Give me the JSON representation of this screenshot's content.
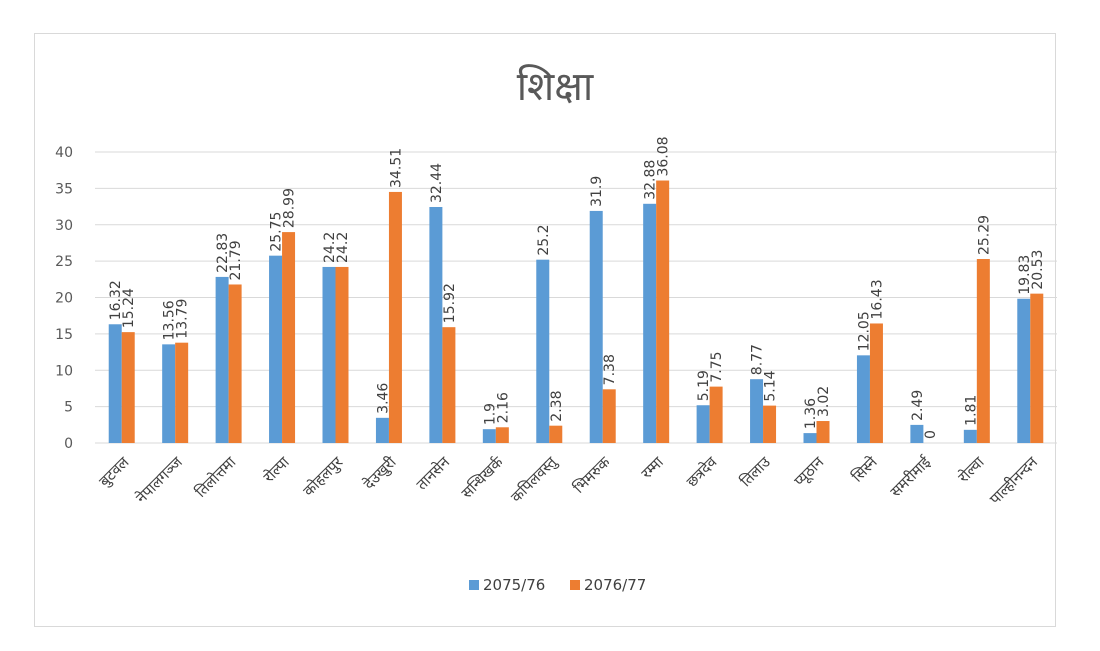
{
  "chart_data": {
    "type": "bar",
    "title": "शिक्षा",
    "categories": [
      "बुटवल",
      "नेपालगञ्ज",
      "तिलोत्तमा",
      "रोल्पा",
      "कोहलपुर",
      "देउखुरी",
      "तानसेन",
      "सन्धिखर्क",
      "कपिलवस्तु",
      "भिमरुक",
      "रम्मा",
      "छत्रदेव",
      "तिलाउ",
      "प्यूठान",
      "सिस्ने",
      "समरीमाई",
      "रोल्वा",
      "पाल्हीनन्दन"
    ],
    "series": [
      {
        "name": "2075/76",
        "color": "#5b9bd5",
        "values": [
          16.32,
          13.56,
          22.83,
          25.75,
          24.2,
          3.46,
          32.44,
          1.9,
          25.2,
          31.9,
          32.88,
          5.19,
          8.77,
          1.36,
          12.05,
          2.49,
          1.81,
          19.83
        ]
      },
      {
        "name": "2076/77",
        "color": "#ed7d31",
        "values": [
          15.24,
          13.79,
          21.79,
          28.99,
          24.2,
          34.51,
          15.92,
          2.16,
          2.38,
          7.38,
          36.08,
          7.75,
          5.14,
          3.02,
          16.43,
          0,
          25.29,
          20.53
        ]
      }
    ],
    "data_labels": [
      [
        "16.32",
        "13.56",
        "22.83",
        "25.75",
        "24.2",
        "3.46",
        "32.44",
        "1.9",
        "25.2",
        "31.9",
        "32.88",
        "5.19",
        "8.77",
        "1.36",
        "12.05",
        "2.49",
        "1.81",
        "19.83"
      ],
      [
        "15.24",
        "13.79",
        "21.79",
        "28.99",
        "24.2",
        "34.51",
        "15.92",
        "2.16",
        "2.38",
        "7.38",
        "36.08",
        "7.75",
        "5.14",
        "3.02",
        "16.43",
        "0",
        "25.29",
        "20.53"
      ]
    ],
    "ylim": [
      0,
      40
    ],
    "yticks": [
      0,
      5,
      10,
      15,
      20,
      25,
      30,
      35,
      40
    ],
    "ytick_labels": [
      "0",
      "5",
      "10",
      "15",
      "20",
      "25",
      "30",
      "35",
      "40"
    ],
    "grid": true,
    "legend": "bottom",
    "xlabel": "",
    "ylabel": "",
    "gridline_color": "#d9d9d9"
  }
}
